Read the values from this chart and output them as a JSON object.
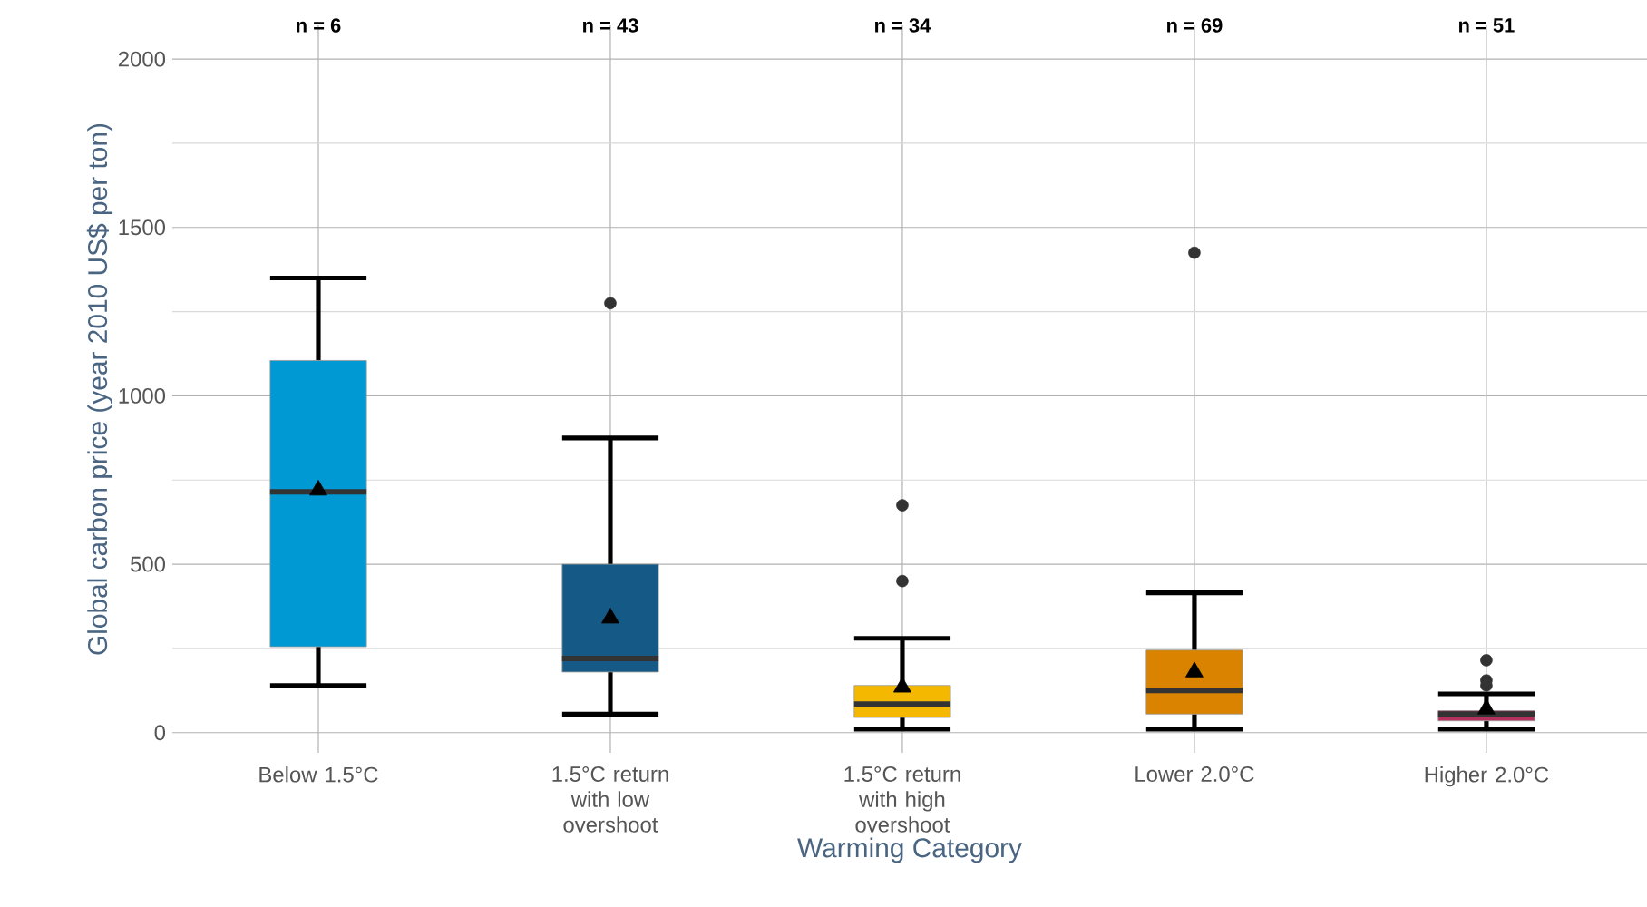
{
  "chart_data": {
    "type": "box",
    "xlabel": "Warming Category",
    "ylabel": "Global carbon price (year 2010 US$ per ton)",
    "categories": [
      "Below 1.5°C",
      "1.5°C return with low overshoot",
      "1.5°C return with high overshoot",
      "Lower 2.0°C",
      "Higher 2.0°C"
    ],
    "colors": [
      "#0099d4",
      "#155a86",
      "#f5b800",
      "#d98300",
      "#b5305c"
    ],
    "boxes": [
      {
        "low": 140,
        "q1": 255,
        "median": 715,
        "q3": 1105,
        "high": 1350,
        "mean": 720
      },
      {
        "low": 55,
        "q1": 180,
        "median": 220,
        "q3": 500,
        "high": 875,
        "mean": 340,
        "outliers": [
          1275
        ]
      },
      {
        "low": 10,
        "q1": 45,
        "median": 85,
        "q3": 140,
        "high": 280,
        "mean": 135,
        "outliers": [
          450,
          675
        ]
      },
      {
        "low": 10,
        "q1": 55,
        "median": 125,
        "q3": 245,
        "high": 415,
        "mean": 180,
        "outliers": [
          1425
        ]
      },
      {
        "low": 10,
        "q1": 35,
        "median": 55,
        "q3": 65,
        "high": 115,
        "mean": 70,
        "outliers": [
          140,
          155,
          215
        ]
      }
    ],
    "ylim": [
      -60,
      2100
    ],
    "yticks": [
      0,
      500,
      1000,
      1500,
      2000
    ],
    "grid": true,
    "annotations": [
      "n = 6",
      "n = 43",
      "n = 34",
      "n = 69",
      "n = 51"
    ]
  }
}
